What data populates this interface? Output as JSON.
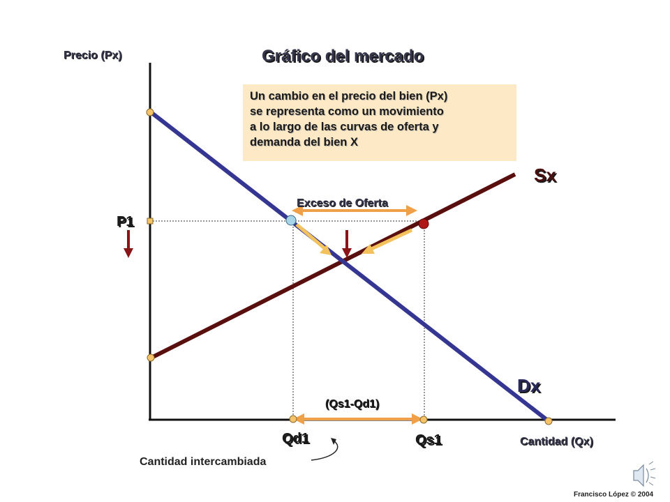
{
  "diagram": {
    "title": "Gráfico del mercado",
    "y_axis_label": "Precio (Px)",
    "x_axis_label": "Cantidad (Qx)",
    "note_lines": [
      "Un cambio en el precio del bien (Px)",
      "se representa como un movimiento",
      "a lo largo de las curvas de oferta y",
      "demanda del bien X"
    ],
    "supply_label": "Sx",
    "demand_label": "Dx",
    "price_label": "P1",
    "excess_label": "Exceso de Oferta",
    "difference_label": "(Qs1-Qd1)",
    "qd_label": "Qd1",
    "qs_label": "Qs1",
    "traded_quantity_label": "Cantidad intercambiada",
    "credit": "Francisco López © 2004",
    "colors": {
      "demand": "#353592",
      "supply": "#5a0f0f",
      "arrow_orange": "#f0a048",
      "arrow_down": "#8a1418",
      "dot_fill": "#f5c46a",
      "dot_blue": "#a8d4e8",
      "dot_red": "#b01818",
      "note_bg": "#fde9c5"
    }
  }
}
